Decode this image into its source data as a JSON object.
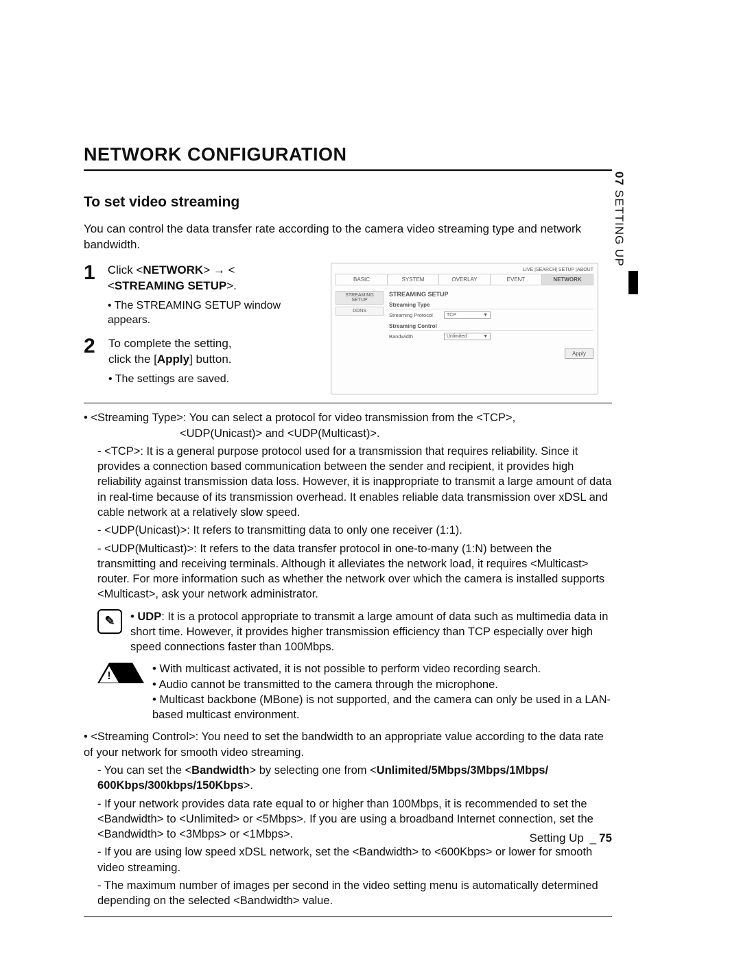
{
  "sideLabel": {
    "num": "07",
    "text": "SETTING UP"
  },
  "heading": "NETWORK CONFIGURATION",
  "subheading": "To set video streaming",
  "intro": "You can control the data transfer rate according to the camera video streaming type and network bandwidth.",
  "steps": {
    "s1": {
      "pre": "Click <",
      "b1": "NETWORK",
      "mid": "> → <",
      "b2": "STREAMING SETUP",
      "post": ">.",
      "sub": "The STREAMING SETUP window appears."
    },
    "s2": {
      "line1": "To complete the setting,",
      "line2a": "click the [",
      "line2b": "Apply",
      "line2c": "] button.",
      "sub": "The settings are saved."
    }
  },
  "shot": {
    "topRight": "LIVE  |SEARCH|  SETUP  |ABOUT",
    "tabs": [
      "BASIC",
      "SYSTEM",
      "OVERLAY",
      "EVENT",
      "NETWORK"
    ],
    "activeTab": 4,
    "sidebar": [
      "STREAMING SETUP",
      "DDNS"
    ],
    "activeSide": 0,
    "panelTitle": "STREAMING SETUP",
    "sec1": "Streaming Type",
    "row1Label": "Streaming Protocol",
    "row1Value": "TCP",
    "sec2": "Streaming Control",
    "row2Label": "Bandwidth",
    "row2Value": "Unlimited",
    "applyBtn": "Apply"
  },
  "streamingType": {
    "lead": "<Streaming Type>: You can select a protocol for video transmission from the <TCP>,",
    "cont": "<UDP(Unicast)> and <UDP(Multicast)>.",
    "tcp": "<TCP>: It is a general purpose protocol used for a transmission that requires reliability. Since it provides a connection based communication between the sender and recipient, it provides high reliability against transmission data loss. However, it is inappropriate to transmit a large amount of data in real-time because of its transmission overhead. It enables reliable data transmission over xDSL and cable network at a relatively slow speed.",
    "uni": "<UDP(Unicast)>: It refers to transmitting data to only one receiver (1:1).",
    "multi": "<UDP(Multicast)>: It refers to the data transfer protocol in one-to-many (1:N) between the transmitting and receiving terminals. Although it alleviates the network load, it requires <Multicast> router. For more information such as whether the network over which the camera is installed supports <Multicast>, ask your network administrator."
  },
  "noteUdp": {
    "b": "UDP",
    "text": ": It is a protocol appropriate to transmit a large amount of data such as multimedia data in short time. However, it provides higher transmission efficiency than TCP especially over high speed connections faster than 100Mbps."
  },
  "warn": {
    "l1": "With multicast activated, it is not possible to perform video recording search.",
    "l2": "Audio cannot be transmitted to the camera through the microphone.",
    "l3": "Multicast backbone (MBone) is not supported, and the camera can only be used in a LAN-based multicast environment."
  },
  "streamingControl": {
    "lead": "<Streaming Control>: You need to set the bandwidth to an appropriate value according to the data rate of your network for smooth video streaming.",
    "p1a": "You can set the <",
    "p1b": "Bandwidth",
    "p1c": "> by selecting one from <",
    "p1d": "Unlimited/5Mbps/3Mbps/1Mbps/ 600Kbps/300kbps/150Kbps",
    "p1e": ">.",
    "p2": "If your network provides data rate equal to or higher than 100Mbps, it is recommended to set the <Bandwidth> to <Unlimited> or <5Mbps>. If you are using a broadband Internet connection, set the <Bandwidth> to <3Mbps> or <1Mbps>.",
    "p3": "If you are using low speed xDSL network, set the <Bandwidth> to <600Kbps> or lower for smooth video streaming.",
    "p4": "The maximum number of images per second in the video setting menu is automatically determined depending on the selected <Bandwidth> value."
  },
  "footer": {
    "label": "Setting Up",
    "sep": "_",
    "page": "75"
  }
}
